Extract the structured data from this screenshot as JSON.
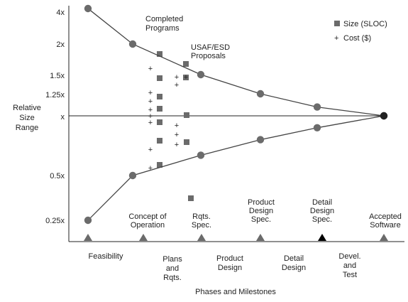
{
  "chart_data": {
    "type": "scatter",
    "title": "",
    "xlabel": "Phases and Milestones",
    "ylabel": "Relative Size Range",
    "y_ticks": [
      "4x",
      "2x",
      "1.5x",
      "1.25x",
      "x",
      "0.5x",
      "0.25x"
    ],
    "milestones": [
      "Feasibility",
      "Concept of Operation",
      "Rqts. Spec.",
      "Product Design Spec.",
      "Detail Design Spec.",
      "Accepted Software"
    ],
    "phases": [
      "Feasibility",
      "Plans and Rqts.",
      "Product Design",
      "Detail Design",
      "Devel. and Test"
    ],
    "legend": {
      "size_label": "Size (SLOC)",
      "cost_label": "Cost ($)",
      "size_symbol": "■",
      "cost_symbol": "+"
    },
    "annotations": {
      "completed_programs": "Completed Programs",
      "usaf_proposals": "USAF/ESD Proposals"
    },
    "series": [
      {
        "values": [
          [
            0,
            4.0
          ],
          [
            1,
            2.0
          ],
          [
            2,
            1.5
          ],
          [
            3,
            1.25
          ],
          [
            4,
            1.1
          ],
          [
            5,
            1.0
          ]
        ]
      },
      {
        "values": [
          [
            0,
            0.25
          ],
          [
            1,
            0.5
          ],
          [
            2,
            0.67
          ],
          [
            3,
            0.8
          ],
          [
            4,
            0.9
          ],
          [
            5,
            1.0
          ]
        ]
      }
    ],
    "colors": {
      "curve": "#444444",
      "marker": "#6b6b6b",
      "square": "#6b6b6b",
      "triangle_dark": "#000000",
      "triangle": "#6b6b6b"
    }
  }
}
